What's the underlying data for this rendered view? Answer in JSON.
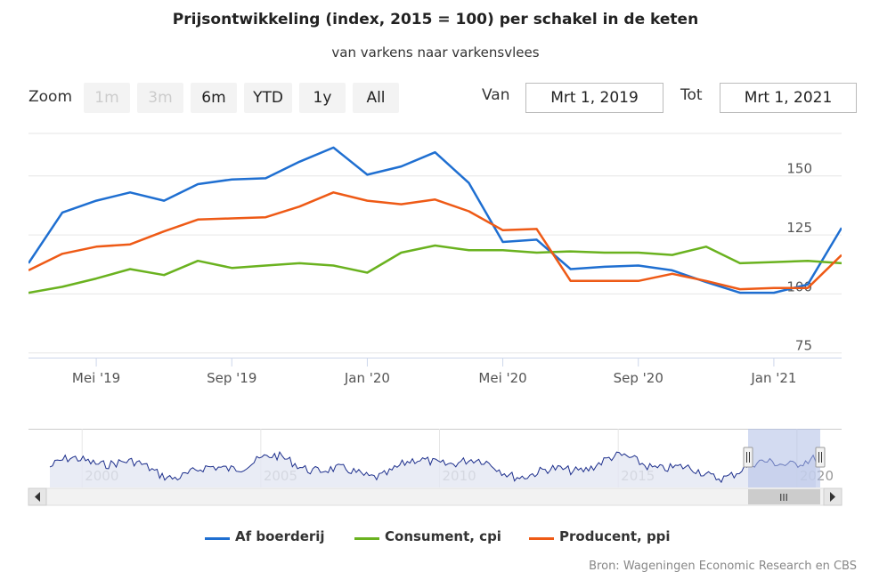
{
  "title": "Prijsontwikkeling (index, 2015 = 100) per schakel in de keten",
  "subtitle": "van varkens naar varkensvlees",
  "range_selector": {
    "zoom_label": "Zoom",
    "buttons": [
      {
        "label": "1m",
        "enabled": false
      },
      {
        "label": "3m",
        "enabled": false
      },
      {
        "label": "6m",
        "enabled": true
      },
      {
        "label": "YTD",
        "enabled": true
      },
      {
        "label": "1y",
        "enabled": true
      },
      {
        "label": "All",
        "enabled": true
      }
    ],
    "from_label": "Van",
    "from_value": "Mrt 1, 2019",
    "to_label": "Tot",
    "to_value": "Mrt 1, 2021"
  },
  "credits": "Bron: Wageningen Economic Research en CBS",
  "colors": {
    "af_boerderij": "#1f6fd1",
    "consument": "#6ab21f",
    "producent": "#ee5a16",
    "navigator_line": "#1c2e8c",
    "navigator_fill": "#e3e7f2",
    "navigator_mask": "#aebde6"
  },
  "chart_data": {
    "type": "line",
    "x": [
      "2019-03",
      "2019-04",
      "2019-05",
      "2019-06",
      "2019-07",
      "2019-08",
      "2019-09",
      "2019-10",
      "2019-11",
      "2019-12",
      "2020-01",
      "2020-02",
      "2020-03",
      "2020-04",
      "2020-05",
      "2020-06",
      "2020-07",
      "2020-08",
      "2020-09",
      "2020-10",
      "2020-11",
      "2020-12",
      "2021-01",
      "2021-02",
      "2021-03"
    ],
    "x_tick_labels": [
      "Mei '19",
      "Sep '19",
      "Jan '20",
      "Mei '20",
      "Sep '20",
      "Jan '21"
    ],
    "y_tick_labels": [
      "75",
      "100",
      "125",
      "150"
    ],
    "ylim": [
      73,
      168
    ],
    "grid": true,
    "legend_position": "bottom",
    "series": [
      {
        "name": "Af boerderij",
        "values": [
          113,
          134.5,
          139.5,
          143,
          139.5,
          146.5,
          148.5,
          149,
          156,
          162,
          150.5,
          154,
          160,
          147,
          122,
          123,
          110.5,
          111.5,
          112,
          110,
          105,
          100.5,
          100.5,
          104,
          128
        ]
      },
      {
        "name": "Consument, cpi",
        "values": [
          100.5,
          103,
          106.5,
          110.5,
          108,
          114,
          111,
          112,
          113,
          112,
          109,
          117.5,
          120.5,
          118.5,
          118.5,
          117.5,
          118,
          117.5,
          117.5,
          116.5,
          120,
          113,
          113.5,
          114,
          113
        ]
      },
      {
        "name": "Producent, ppi",
        "values": [
          110,
          117,
          120,
          121,
          126.5,
          131.5,
          132,
          132.5,
          137,
          143,
          139.5,
          138,
          140,
          135,
          127,
          127.5,
          105.5,
          105.5,
          105.5,
          108.5,
          105.5,
          102,
          102.5,
          102.5,
          116.5
        ]
      }
    ]
  },
  "navigator": {
    "year_labels": [
      "2000",
      "2005",
      "2010",
      "2015",
      "2020"
    ],
    "scrollbar_grip": "III"
  }
}
